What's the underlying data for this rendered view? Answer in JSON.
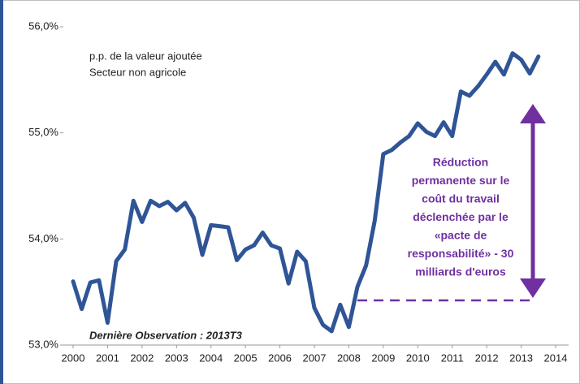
{
  "chart_data": {
    "type": "line",
    "annotations": [
      "p.p. de la valeur ajoutée",
      "Secteur non agricole"
    ],
    "footnote": "Dernière Observation : 2013T3",
    "callout": [
      "Réduction",
      "permanente sur le",
      "coût du travail",
      "déclenchée par le",
      "«pacte de",
      "responsabilité» - 30",
      "milliards d'euros"
    ],
    "x": [
      2000,
      2000.25,
      2000.5,
      2000.75,
      2001,
      2001.25,
      2001.5,
      2001.75,
      2002,
      2002.25,
      2002.5,
      2002.75,
      2003,
      2003.25,
      2003.5,
      2003.75,
      2004,
      2004.25,
      2004.5,
      2004.75,
      2005,
      2005.25,
      2005.5,
      2005.75,
      2006,
      2006.25,
      2006.5,
      2006.75,
      2007,
      2007.25,
      2007.5,
      2007.75,
      2008,
      2008.25,
      2008.5,
      2008.75,
      2009,
      2009.25,
      2009.5,
      2009.75,
      2010,
      2010.25,
      2010.5,
      2010.75,
      2011,
      2011.25,
      2011.5,
      2011.75,
      2012,
      2012.25,
      2012.5,
      2012.75,
      2013,
      2013.25,
      2013.5
    ],
    "values": [
      53.6,
      53.34,
      53.59,
      53.61,
      53.21,
      53.79,
      53.9,
      54.36,
      54.16,
      54.36,
      54.31,
      54.35,
      54.27,
      54.34,
      54.2,
      53.85,
      54.13,
      54.12,
      54.11,
      53.8,
      53.9,
      53.94,
      54.06,
      53.94,
      53.91,
      53.58,
      53.88,
      53.79,
      53.35,
      53.19,
      53.13,
      53.38,
      53.17,
      53.55,
      53.75,
      54.17,
      54.8,
      54.84,
      54.91,
      54.97,
      55.09,
      55.01,
      54.97,
      55.1,
      54.97,
      55.39,
      55.35,
      55.44,
      55.55,
      55.67,
      55.55,
      55.75,
      55.69,
      55.56,
      55.72
    ],
    "color": "#2f5597",
    "xlim": [
      2000,
      2014
    ],
    "xticks": [
      2000,
      2001,
      2002,
      2003,
      2004,
      2005,
      2006,
      2007,
      2008,
      2009,
      2010,
      2011,
      2012,
      2013,
      2014
    ],
    "ylim": [
      53,
      56
    ],
    "yticks": [
      {
        "value": 53,
        "label": "53,0%"
      },
      {
        "value": 54,
        "label": "54,0%"
      },
      {
        "value": 55,
        "label": "55,0%"
      },
      {
        "value": 56,
        "label": "56,0%"
      }
    ],
    "grid": false
  }
}
